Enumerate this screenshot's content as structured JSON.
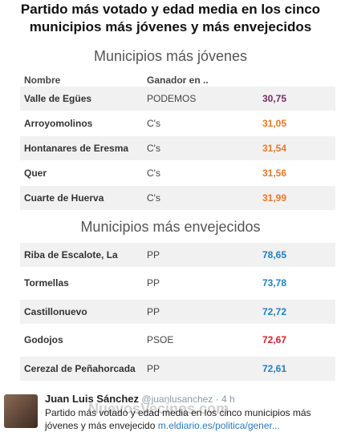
{
  "image": {
    "title": [
      "Partido más votado y edad media en los cinco",
      "municipios más jóvenes y más envejecidos"
    ],
    "tables": [
      {
        "heading": "Municipios más jóvenes",
        "columns": [
          "Nombre",
          "Ganador en .."
        ],
        "rows": [
          {
            "name": "Valle de Egües",
            "winner": "PODEMOS",
            "value": "30,75",
            "color": "#7b2a6e"
          },
          {
            "name": "Arroyomolinos",
            "winner": "C's",
            "value": "31,05",
            "color": "#e8782a"
          },
          {
            "name": "Hontanares de Eresma",
            "winner": "C's",
            "value": "31,54",
            "color": "#e8782a"
          },
          {
            "name": "Quer",
            "winner": "C's",
            "value": "31,56",
            "color": "#e8782a"
          },
          {
            "name": "Cuarte de Huerva",
            "winner": "C's",
            "value": "31,99",
            "color": "#e8782a"
          }
        ]
      },
      {
        "heading": "Municipios más envejecidos",
        "rows": [
          {
            "name": "Riba de Escalote, La",
            "winner": "PP",
            "value": "78,65",
            "color": "#1f7fc0"
          },
          {
            "name": "Tormellas",
            "winner": "PP",
            "value": "73,78",
            "color": "#1f7fc0"
          },
          {
            "name": "Castillonuevo",
            "winner": "PP",
            "value": "72,72",
            "color": "#1f7fc0"
          },
          {
            "name": "Godojos",
            "winner": "PSOE",
            "value": "72,67",
            "color": "#d0212a"
          },
          {
            "name": "Cerezal de Peñahorcada",
            "winner": "PP",
            "value": "72,61",
            "color": "#1f7fc0"
          }
        ]
      }
    ],
    "watermark": "NuevosVecinos.com"
  },
  "tweet": {
    "author": "Juan Luis Sánchez",
    "handle": "@juanlusanchez",
    "time": "· 4 h",
    "text": "Partido más votado y edad media en los cinco municipios más jóvenes y más envejecido",
    "link": "m.eldiario.es/politica/gener..."
  }
}
